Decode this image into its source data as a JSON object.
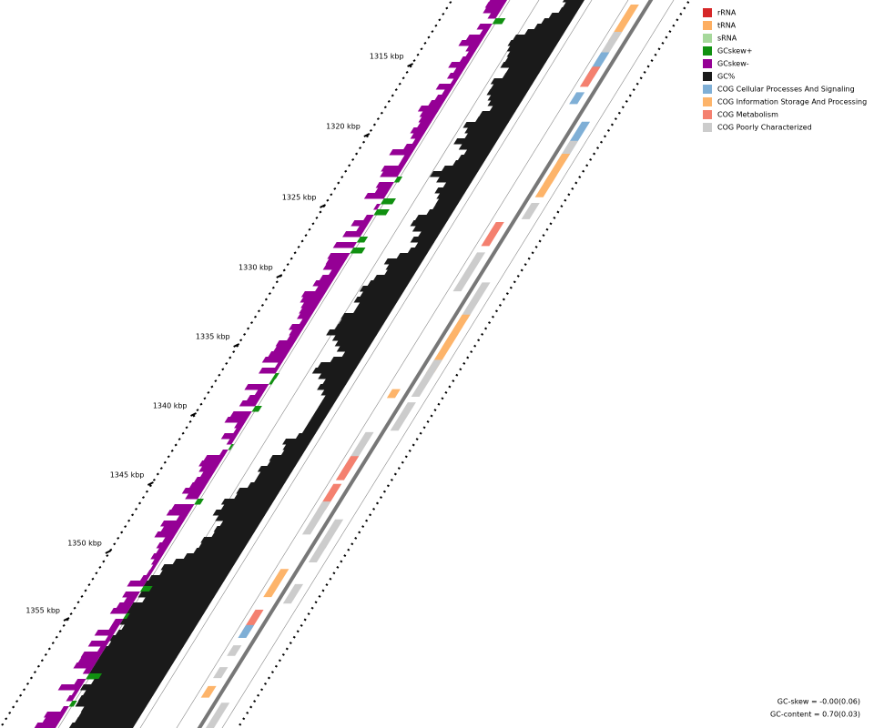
{
  "ruler": {
    "labels": [
      "1315 kbp",
      "1320 kbp",
      "1325 kbp",
      "1330 kbp",
      "1335 kbp",
      "1340 kbp",
      "1345 kbp",
      "1350 kbp",
      "1355 kbp"
    ]
  },
  "legend": {
    "items": [
      {
        "label": "rRNA",
        "color": "#d62728"
      },
      {
        "label": "tRNA",
        "color": "#fdae61"
      },
      {
        "label": "sRNA",
        "color": "#a6d89b"
      },
      {
        "label": "GCskew+",
        "color": "#109010"
      },
      {
        "label": "GCskew-",
        "color": "#950095"
      },
      {
        "label": "GC%",
        "color": "#1a1a1a"
      },
      {
        "label": "COG Cellular Processes And Signaling",
        "color": "#7fafd6"
      },
      {
        "label": "COG Information Storage And Processing",
        "color": "#fdb46a"
      },
      {
        "label": "COG Metabolism",
        "color": "#f4806f"
      },
      {
        "label": "COG Poorly Characterized",
        "color": "#cccccc"
      }
    ]
  },
  "stats": {
    "gc_skew": "GC-skew = -0.00(0.06)",
    "gc_content": "GC-content = 0.70(0.03)"
  }
}
